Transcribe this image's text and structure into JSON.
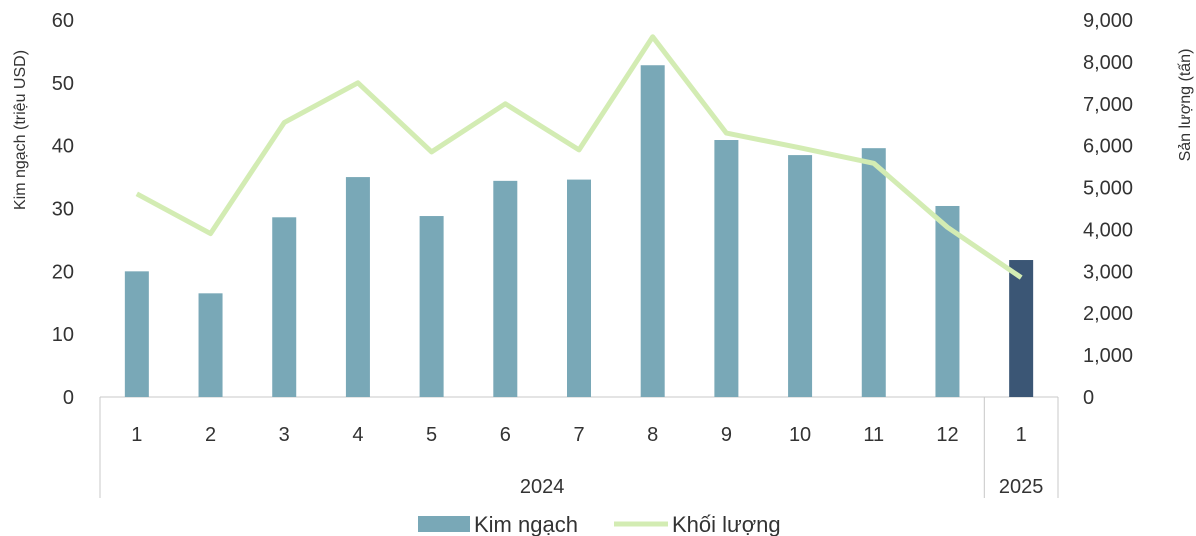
{
  "chart_data": {
    "type": "bar",
    "categories": [
      "1",
      "2",
      "3",
      "4",
      "5",
      "6",
      "7",
      "8",
      "9",
      "10",
      "11",
      "12",
      "1"
    ],
    "groups": [
      {
        "label": "2024",
        "count": 12
      },
      {
        "label": "2025",
        "count": 1
      }
    ],
    "series": [
      {
        "name": "Kim ngạch",
        "kind": "bar",
        "axis": "left",
        "color": "#79a8b7",
        "highlight_color": "#3b5675",
        "values": [
          20.0,
          16.5,
          28.6,
          35.0,
          28.8,
          34.4,
          34.6,
          52.8,
          40.9,
          38.5,
          39.6,
          30.4,
          21.8
        ]
      },
      {
        "name": "Khối lượng",
        "kind": "line",
        "axis": "right",
        "color": "#d3ecb3",
        "values": [
          4850,
          3900,
          6550,
          7500,
          5850,
          7000,
          5900,
          8600,
          6300,
          5950,
          5580,
          4050,
          2850
        ]
      }
    ],
    "ylabel": "Kim ngạch (triệu USD)",
    "ylabel_right": "Sản lượng (tấn)",
    "ylim": [
      0,
      60
    ],
    "ylim_right": [
      0,
      9000
    ],
    "yticks": [
      "0",
      "10",
      "20",
      "30",
      "40",
      "50",
      "60"
    ],
    "yticks_right": [
      "0",
      "1,000",
      "2,000",
      "3,000",
      "4,000",
      "5,000",
      "6,000",
      "7,000",
      "8,000",
      "9,000"
    ],
    "legend_position": "bottom",
    "grid": false
  }
}
